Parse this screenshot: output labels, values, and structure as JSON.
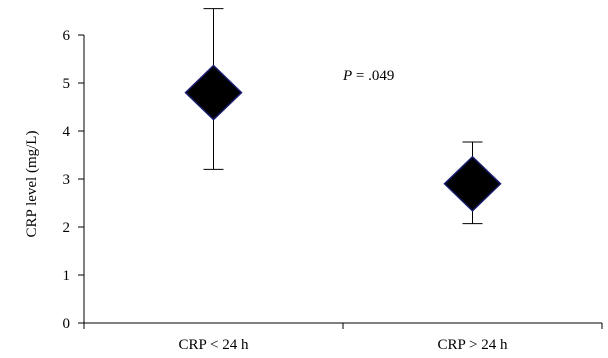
{
  "chart_data": {
    "type": "scatter",
    "categories": [
      "CRP < 24 h",
      "CRP > 24 h"
    ],
    "values": [
      4.8,
      2.9
    ],
    "error_bars": [
      {
        "lower": 3.2,
        "upper": 6.55
      },
      {
        "lower": 2.07,
        "upper": 3.77
      }
    ],
    "ylabel": "CRP level (mg/L)",
    "xlabel": "",
    "ylim": [
      0,
      6
    ],
    "yticks": [
      "0",
      "1",
      "2",
      "3",
      "4",
      "5",
      "6"
    ],
    "annotation": {
      "p_symbol": "P",
      "p_text": " = .049"
    },
    "marker": "diamond",
    "grid": false,
    "colors": {
      "marker_fill": "#000000",
      "marker_stroke": "#1a1a6e",
      "axis": "#000000"
    }
  }
}
